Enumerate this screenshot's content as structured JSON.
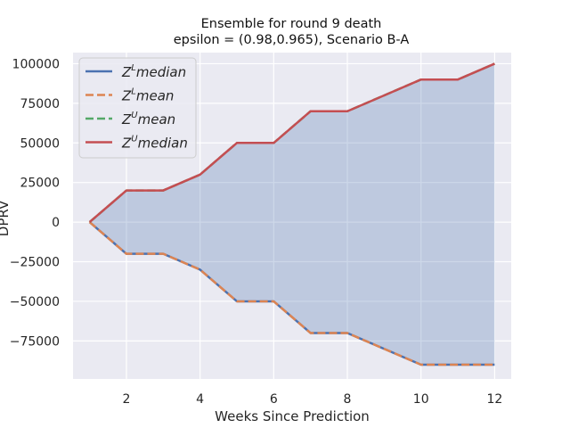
{
  "chart_data": {
    "type": "line",
    "title": "Ensemble for round 9 death",
    "subtitle": "epsilon = (0.98,0.965), Scenario B-A",
    "xlabel": "Weeks Since Prediction",
    "ylabel": "DPRV",
    "xlim": [
      0.55,
      12.45
    ],
    "ylim": [
      -99000,
      107000
    ],
    "xticks": [
      2,
      4,
      6,
      8,
      10,
      12
    ],
    "yticks": [
      -75000,
      -50000,
      -25000,
      0,
      25000,
      50000,
      75000,
      100000
    ],
    "ytick_labels": [
      "−75000",
      "−50000",
      "−25000",
      "0",
      "25000",
      "50000",
      "75000",
      "100000"
    ],
    "grid": true,
    "legend_position": "top-left",
    "fill_color": "#4c72b0",
    "x": [
      1,
      2,
      3,
      4,
      5,
      6,
      7,
      8,
      9,
      10,
      11,
      12
    ],
    "series": [
      {
        "name": "median",
        "sup": "L",
        "color": "#4c72b0",
        "dash": "solid",
        "values": [
          0,
          -20000,
          -20000,
          -30000,
          -50000,
          -50000,
          -70000,
          -70000,
          -80000,
          -90000,
          -90000,
          -90000
        ]
      },
      {
        "name": "mean",
        "sup": "L",
        "color": "#dd8452",
        "dash": "dashed",
        "values": [
          0,
          -20000,
          -20000,
          -30000,
          -50000,
          -50000,
          -70000,
          -70000,
          -80000,
          -90000,
          -90000,
          -90000
        ]
      },
      {
        "name": "mean",
        "sup": "U",
        "color": "#55a868",
        "dash": "dashed",
        "values": [
          0,
          20000,
          20000,
          30000,
          50000,
          50000,
          70000,
          70000,
          80000,
          90000,
          90000,
          100000
        ]
      },
      {
        "name": "median",
        "sup": "U",
        "color": "#c44e52",
        "dash": "solid",
        "values": [
          0,
          20000,
          20000,
          30000,
          50000,
          50000,
          70000,
          70000,
          80000,
          90000,
          90000,
          100000
        ]
      }
    ]
  }
}
